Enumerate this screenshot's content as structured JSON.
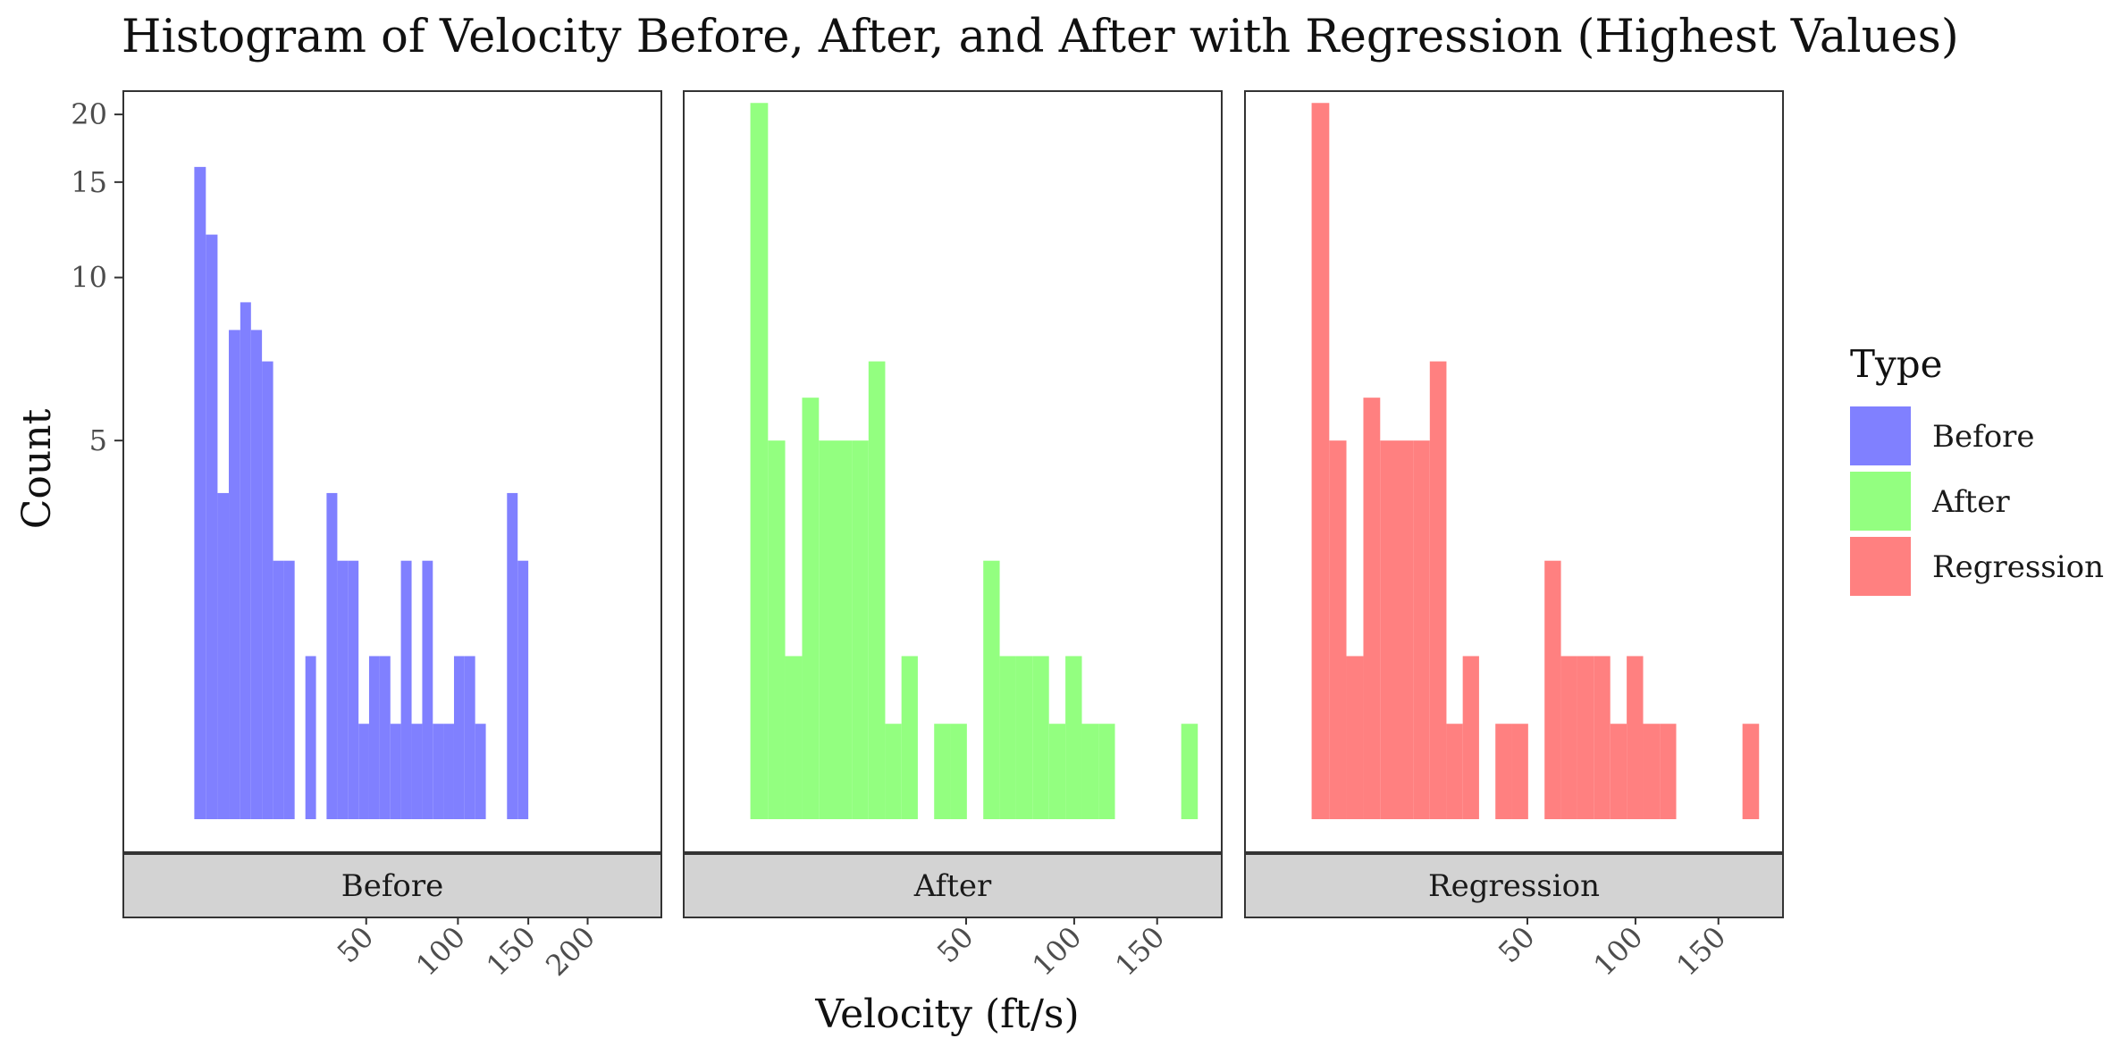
{
  "chart_data": {
    "type": "bar",
    "title": "Histogram of Velocity Before, After, and After with Regression (Highest Values)",
    "xlabel": "Velocity (ft/s)",
    "ylabel": "Count",
    "y_scale": "log",
    "y_ticks": [
      5,
      10,
      15,
      20
    ],
    "ylim": [
      1,
      22
    ],
    "grid": false,
    "legend": {
      "title": "Type",
      "placement": "right",
      "entries": [
        {
          "name": "Before",
          "color": "#8080ff"
        },
        {
          "name": "After",
          "color": "#93ff80"
        },
        {
          "name": "Regression",
          "color": "#ff8080"
        }
      ]
    },
    "panels": [
      {
        "name": "Before",
        "color": "#8080ff",
        "x_scale": "sqrt",
        "xlim": [
          0,
          250
        ],
        "x_ticks": [
          50,
          100,
          150,
          200
        ],
        "bins": [
          {
            "x0": 2.5,
            "x1": 3.8,
            "count": 16
          },
          {
            "x0": 3.8,
            "x1": 5.4,
            "count": 12
          },
          {
            "x0": 5.4,
            "x1": 7.2,
            "count": 4
          },
          {
            "x0": 7.2,
            "x1": 9.3,
            "count": 8
          },
          {
            "x0": 9.3,
            "x1": 11.5,
            "count": 9
          },
          {
            "x0": 11.5,
            "x1": 14.0,
            "count": 8
          },
          {
            "x0": 14.0,
            "x1": 16.8,
            "count": 7
          },
          {
            "x0": 16.8,
            "x1": 19.8,
            "count": 3
          },
          {
            "x0": 19.8,
            "x1": 22.9,
            "count": 3
          },
          {
            "x0": 22.9,
            "x1": 26.3,
            "count": 0
          },
          {
            "x0": 26.3,
            "x1": 29.9,
            "count": 2
          },
          {
            "x0": 29.9,
            "x1": 33.7,
            "count": 0
          },
          {
            "x0": 33.7,
            "x1": 37.8,
            "count": 4
          },
          {
            "x0": 37.8,
            "x1": 42.1,
            "count": 3
          },
          {
            "x0": 42.1,
            "x1": 46.6,
            "count": 3
          },
          {
            "x0": 46.6,
            "x1": 51.3,
            "count": 1.5
          },
          {
            "x0": 51.3,
            "x1": 56.3,
            "count": 2
          },
          {
            "x0": 56.3,
            "x1": 61.5,
            "count": 2
          },
          {
            "x0": 61.5,
            "x1": 66.9,
            "count": 1.5
          },
          {
            "x0": 66.9,
            "x1": 72.6,
            "count": 3
          },
          {
            "x0": 72.6,
            "x1": 78.5,
            "count": 1.5
          },
          {
            "x0": 78.5,
            "x1": 84.6,
            "count": 3
          },
          {
            "x0": 84.6,
            "x1": 90.9,
            "count": 1.5
          },
          {
            "x0": 90.9,
            "x1": 97.5,
            "count": 1.5
          },
          {
            "x0": 97.5,
            "x1": 104.3,
            "count": 2
          },
          {
            "x0": 104.3,
            "x1": 111.3,
            "count": 2
          },
          {
            "x0": 111.3,
            "x1": 118.6,
            "count": 1.5
          },
          {
            "x0": 118.6,
            "x1": 126.1,
            "count": 0
          },
          {
            "x0": 126.1,
            "x1": 133.8,
            "count": 0
          },
          {
            "x0": 133.8,
            "x1": 141.8,
            "count": 4
          },
          {
            "x0": 141.8,
            "x1": 150.0,
            "count": 3
          }
        ]
      },
      {
        "name": "After",
        "color": "#93ff80",
        "x_scale": "sqrt",
        "xlim": [
          0,
          180
        ],
        "x_ticks": [
          50,
          100,
          150
        ],
        "bins": [
          {
            "x0": 1.5,
            "x1": 2.9,
            "count": 21
          },
          {
            "x0": 2.9,
            "x1": 4.7,
            "count": 5
          },
          {
            "x0": 4.7,
            "x1": 6.9,
            "count": 2
          },
          {
            "x0": 6.9,
            "x1": 9.5,
            "count": 6
          },
          {
            "x0": 9.5,
            "x1": 12.5,
            "count": 5
          },
          {
            "x0": 12.5,
            "x1": 15.8,
            "count": 5
          },
          {
            "x0": 15.8,
            "x1": 19.6,
            "count": 5
          },
          {
            "x0": 19.6,
            "x1": 23.8,
            "count": 7
          },
          {
            "x0": 23.8,
            "x1": 28.3,
            "count": 1.5
          },
          {
            "x0": 28.3,
            "x1": 33.2,
            "count": 2
          },
          {
            "x0": 33.2,
            "x1": 38.5,
            "count": 0
          },
          {
            "x0": 38.5,
            "x1": 44.2,
            "count": 1.5
          },
          {
            "x0": 44.2,
            "x1": 50.3,
            "count": 1.5
          },
          {
            "x0": 50.3,
            "x1": 56.8,
            "count": 0
          },
          {
            "x0": 56.8,
            "x1": 63.7,
            "count": 3
          },
          {
            "x0": 63.7,
            "x1": 71.0,
            "count": 2
          },
          {
            "x0": 71.0,
            "x1": 78.7,
            "count": 2
          },
          {
            "x0": 78.7,
            "x1": 86.8,
            "count": 2
          },
          {
            "x0": 86.8,
            "x1": 95.3,
            "count": 1.5
          },
          {
            "x0": 95.3,
            "x1": 104.2,
            "count": 2
          },
          {
            "x0": 104.2,
            "x1": 113.6,
            "count": 1.5
          },
          {
            "x0": 113.6,
            "x1": 123.3,
            "count": 1.5
          },
          {
            "x0": 123.3,
            "x1": 133.5,
            "count": 0
          },
          {
            "x0": 133.5,
            "x1": 144.0,
            "count": 0
          },
          {
            "x0": 144.0,
            "x1": 155.0,
            "count": 0
          },
          {
            "x0": 155.0,
            "x1": 166.4,
            "count": 0
          },
          {
            "x0": 166.4,
            "x1": 178.2,
            "count": 1.5
          }
        ]
      },
      {
        "name": "Regression",
        "color": "#ff8080",
        "x_scale": "sqrt",
        "xlim": [
          0,
          180
        ],
        "x_ticks": [
          50,
          100,
          150
        ],
        "bins": [
          {
            "x0": 1.5,
            "x1": 2.9,
            "count": 21
          },
          {
            "x0": 2.9,
            "x1": 4.7,
            "count": 5
          },
          {
            "x0": 4.7,
            "x1": 6.9,
            "count": 2
          },
          {
            "x0": 6.9,
            "x1": 9.5,
            "count": 6
          },
          {
            "x0": 9.5,
            "x1": 12.5,
            "count": 5
          },
          {
            "x0": 12.5,
            "x1": 15.8,
            "count": 5
          },
          {
            "x0": 15.8,
            "x1": 19.6,
            "count": 5
          },
          {
            "x0": 19.6,
            "x1": 23.8,
            "count": 7
          },
          {
            "x0": 23.8,
            "x1": 28.3,
            "count": 1.5
          },
          {
            "x0": 28.3,
            "x1": 33.2,
            "count": 2
          },
          {
            "x0": 33.2,
            "x1": 38.5,
            "count": 0
          },
          {
            "x0": 38.5,
            "x1": 44.2,
            "count": 1.5
          },
          {
            "x0": 44.2,
            "x1": 50.3,
            "count": 1.5
          },
          {
            "x0": 50.3,
            "x1": 56.8,
            "count": 0
          },
          {
            "x0": 56.8,
            "x1": 63.7,
            "count": 3
          },
          {
            "x0": 63.7,
            "x1": 71.0,
            "count": 2
          },
          {
            "x0": 71.0,
            "x1": 78.7,
            "count": 2
          },
          {
            "x0": 78.7,
            "x1": 86.8,
            "count": 2
          },
          {
            "x0": 86.8,
            "x1": 95.3,
            "count": 1.5
          },
          {
            "x0": 95.3,
            "x1": 104.2,
            "count": 2
          },
          {
            "x0": 104.2,
            "x1": 113.6,
            "count": 1.5
          },
          {
            "x0": 113.6,
            "x1": 123.3,
            "count": 1.5
          },
          {
            "x0": 123.3,
            "x1": 133.5,
            "count": 0
          },
          {
            "x0": 133.5,
            "x1": 144.0,
            "count": 0
          },
          {
            "x0": 144.0,
            "x1": 155.0,
            "count": 0
          },
          {
            "x0": 155.0,
            "x1": 166.4,
            "count": 0
          },
          {
            "x0": 166.4,
            "x1": 178.2,
            "count": 1.5
          }
        ]
      }
    ]
  }
}
